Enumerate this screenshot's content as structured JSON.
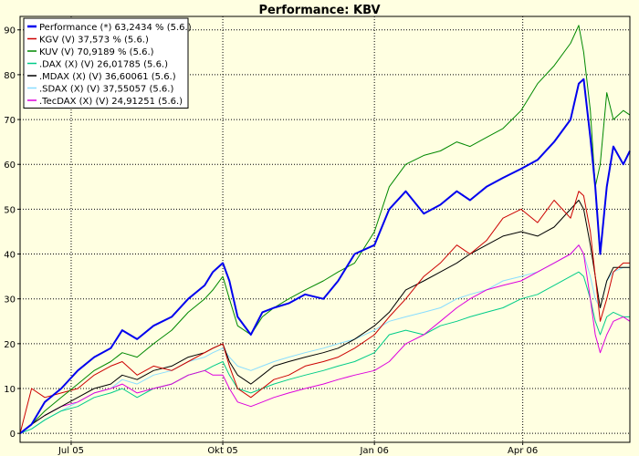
{
  "chart_data": {
    "type": "line",
    "title": "Performance: KBV",
    "xlabel": "",
    "ylabel": "",
    "xlim": [
      "2005-05-31",
      "2006-06-05"
    ],
    "ylim": [
      -2,
      93
    ],
    "y_ticks": [
      0,
      10,
      20,
      30,
      40,
      50,
      60,
      70,
      80,
      90
    ],
    "x_ticks": [
      {
        "label": "Jul 05",
        "date": "2005-07-01"
      },
      {
        "label": "Okt 05",
        "date": "2005-10-01"
      },
      {
        "label": "Jan 06",
        "date": "2006-01-01"
      },
      {
        "label": "Apr 06",
        "date": "2006-04-01"
      }
    ],
    "grid": true,
    "legend_position": "top-left",
    "series": [
      {
        "name": "Performance (*) 63,2434 % (5.6.)",
        "color": "#0000ee",
        "x": [
          "2005-05-31",
          "2005-06-07",
          "2005-06-15",
          "2005-06-25",
          "2005-07-05",
          "2005-07-15",
          "2005-07-25",
          "2005-08-01",
          "2005-08-10",
          "2005-08-20",
          "2005-08-31",
          "2005-09-10",
          "2005-09-20",
          "2005-09-25",
          "2005-10-01",
          "2005-10-05",
          "2005-10-10",
          "2005-10-18",
          "2005-10-25",
          "2005-11-01",
          "2005-11-10",
          "2005-11-20",
          "2005-12-01",
          "2005-12-10",
          "2005-12-20",
          "2006-01-01",
          "2006-01-10",
          "2006-01-20",
          "2006-01-31",
          "2006-02-10",
          "2006-02-20",
          "2006-02-28",
          "2006-03-10",
          "2006-03-20",
          "2006-03-31",
          "2006-04-10",
          "2006-04-20",
          "2006-04-30",
          "2006-05-05",
          "2006-05-08",
          "2006-05-12",
          "2006-05-15",
          "2006-05-18",
          "2006-05-22",
          "2006-05-26",
          "2006-06-01",
          "2006-06-05"
        ],
        "y": [
          0,
          2,
          7,
          10,
          14,
          17,
          19,
          23,
          21,
          24,
          26,
          30,
          33,
          36,
          38,
          34,
          26,
          22,
          27,
          28,
          29,
          31,
          30,
          34,
          40,
          42,
          50,
          54,
          49,
          51,
          54,
          52,
          55,
          57,
          59,
          61,
          65,
          70,
          78,
          79,
          66,
          55,
          40,
          55,
          64,
          60,
          63
        ]
      },
      {
        "name": "KGV (V) 37,573 % (5.6.)",
        "color": "#cc0000",
        "x": [
          "2005-05-31",
          "2005-06-07",
          "2005-06-15",
          "2005-06-25",
          "2005-07-05",
          "2005-07-15",
          "2005-07-25",
          "2005-08-01",
          "2005-08-10",
          "2005-08-20",
          "2005-08-31",
          "2005-09-10",
          "2005-09-20",
          "2005-09-25",
          "2005-10-01",
          "2005-10-05",
          "2005-10-10",
          "2005-10-18",
          "2005-10-25",
          "2005-11-01",
          "2005-11-10",
          "2005-11-20",
          "2005-12-01",
          "2005-12-10",
          "2005-12-20",
          "2006-01-01",
          "2006-01-10",
          "2006-01-20",
          "2006-01-31",
          "2006-02-10",
          "2006-02-20",
          "2006-02-28",
          "2006-03-10",
          "2006-03-20",
          "2006-03-31",
          "2006-04-10",
          "2006-04-20",
          "2006-04-30",
          "2006-05-05",
          "2006-05-08",
          "2006-05-12",
          "2006-05-15",
          "2006-05-18",
          "2006-05-22",
          "2006-05-26",
          "2006-06-01",
          "2006-06-05"
        ],
        "y": [
          0,
          10,
          8,
          9,
          10,
          13,
          15,
          16,
          13,
          15,
          14,
          16,
          18,
          19,
          20,
          15,
          10,
          8,
          10,
          12,
          13,
          15,
          16,
          17,
          19,
          22,
          26,
          30,
          35,
          38,
          42,
          40,
          43,
          48,
          50,
          47,
          52,
          48,
          54,
          53,
          45,
          35,
          25,
          30,
          36,
          38,
          38
        ]
      },
      {
        "name": "KUV (V) 70,9189 % (5.6.)",
        "color": "#008800",
        "x": [
          "2005-05-31",
          "2005-06-07",
          "2005-06-15",
          "2005-06-25",
          "2005-07-05",
          "2005-07-15",
          "2005-07-25",
          "2005-08-01",
          "2005-08-10",
          "2005-08-20",
          "2005-08-31",
          "2005-09-10",
          "2005-09-20",
          "2005-09-25",
          "2005-10-01",
          "2005-10-05",
          "2005-10-10",
          "2005-10-18",
          "2005-10-25",
          "2005-11-01",
          "2005-11-10",
          "2005-11-20",
          "2005-12-01",
          "2005-12-10",
          "2005-12-20",
          "2006-01-01",
          "2006-01-10",
          "2006-01-20",
          "2006-01-31",
          "2006-02-10",
          "2006-02-20",
          "2006-02-28",
          "2006-03-10",
          "2006-03-20",
          "2006-03-31",
          "2006-04-10",
          "2006-04-20",
          "2006-04-30",
          "2006-05-05",
          "2006-05-08",
          "2006-05-12",
          "2006-05-15",
          "2006-05-18",
          "2006-05-22",
          "2006-05-26",
          "2006-06-01",
          "2006-06-05"
        ],
        "y": [
          0,
          2,
          5,
          8,
          11,
          14,
          16,
          18,
          17,
          20,
          23,
          27,
          30,
          32,
          35,
          30,
          24,
          22,
          26,
          28,
          30,
          32,
          34,
          36,
          38,
          45,
          55,
          60,
          62,
          63,
          65,
          64,
          66,
          68,
          72,
          78,
          82,
          87,
          91,
          85,
          72,
          55,
          60,
          76,
          70,
          72,
          71
        ]
      },
      {
        "name": ".DAX (X) (V) 26,01785 (5.6.)",
        "color": "#00cc88",
        "x": [
          "2005-05-31",
          "2005-06-07",
          "2005-06-15",
          "2005-06-25",
          "2005-07-05",
          "2005-07-15",
          "2005-07-25",
          "2005-08-01",
          "2005-08-10",
          "2005-08-20",
          "2005-08-31",
          "2005-09-10",
          "2005-09-20",
          "2005-09-25",
          "2005-10-01",
          "2005-10-05",
          "2005-10-10",
          "2005-10-18",
          "2005-10-25",
          "2005-11-01",
          "2005-11-10",
          "2005-11-20",
          "2005-12-01",
          "2005-12-10",
          "2005-12-20",
          "2006-01-01",
          "2006-01-10",
          "2006-01-20",
          "2006-01-31",
          "2006-02-10",
          "2006-02-20",
          "2006-02-28",
          "2006-03-10",
          "2006-03-20",
          "2006-03-31",
          "2006-04-10",
          "2006-04-20",
          "2006-04-30",
          "2006-05-05",
          "2006-05-08",
          "2006-05-12",
          "2006-05-15",
          "2006-05-18",
          "2006-05-22",
          "2006-05-26",
          "2006-06-01",
          "2006-06-05"
        ],
        "y": [
          0,
          1,
          3,
          5,
          6,
          8,
          9,
          10,
          8,
          10,
          11,
          13,
          14,
          15,
          16,
          13,
          10,
          9,
          10,
          11,
          12,
          13,
          14,
          15,
          16,
          18,
          22,
          23,
          22,
          24,
          25,
          26,
          27,
          28,
          30,
          31,
          33,
          35,
          36,
          35,
          30,
          25,
          22,
          26,
          27,
          26,
          26
        ]
      },
      {
        "name": ".MDAX (X) (V) 36,60061 (5.6.)",
        "color": "#000000",
        "x": [
          "2005-05-31",
          "2005-06-07",
          "2005-06-15",
          "2005-06-25",
          "2005-07-05",
          "2005-07-15",
          "2005-07-25",
          "2005-08-01",
          "2005-08-10",
          "2005-08-20",
          "2005-08-31",
          "2005-09-10",
          "2005-09-20",
          "2005-09-25",
          "2005-10-01",
          "2005-10-05",
          "2005-10-10",
          "2005-10-18",
          "2005-10-25",
          "2005-11-01",
          "2005-11-10",
          "2005-11-20",
          "2005-12-01",
          "2005-12-10",
          "2005-12-20",
          "2006-01-01",
          "2006-01-10",
          "2006-01-20",
          "2006-01-31",
          "2006-02-10",
          "2006-02-20",
          "2006-02-28",
          "2006-03-10",
          "2006-03-20",
          "2006-03-31",
          "2006-04-10",
          "2006-04-20",
          "2006-04-30",
          "2006-05-05",
          "2006-05-08",
          "2006-05-12",
          "2006-05-15",
          "2006-05-18",
          "2006-05-22",
          "2006-05-26",
          "2006-06-01",
          "2006-06-05"
        ],
        "y": [
          0,
          2,
          4,
          6,
          8,
          10,
          11,
          13,
          12,
          14,
          15,
          17,
          18,
          19,
          20,
          16,
          13,
          11,
          13,
          15,
          16,
          17,
          18,
          19,
          21,
          24,
          27,
          32,
          34,
          36,
          38,
          40,
          42,
          44,
          45,
          44,
          46,
          50,
          52,
          50,
          42,
          35,
          28,
          34,
          37,
          37,
          37
        ]
      },
      {
        "name": ".SDAX (X) (V) 37,55057 (5.6.)",
        "color": "#88ddff",
        "x": [
          "2005-05-31",
          "2005-06-07",
          "2005-06-15",
          "2005-06-25",
          "2005-07-05",
          "2005-07-15",
          "2005-07-25",
          "2005-08-01",
          "2005-08-10",
          "2005-08-20",
          "2005-08-31",
          "2005-09-10",
          "2005-09-20",
          "2005-09-25",
          "2005-10-01",
          "2005-10-05",
          "2005-10-10",
          "2005-10-18",
          "2005-10-25",
          "2005-11-01",
          "2005-11-10",
          "2005-11-20",
          "2005-12-01",
          "2005-12-10",
          "2005-12-20",
          "2006-01-01",
          "2006-01-10",
          "2006-01-20",
          "2006-01-31",
          "2006-02-10",
          "2006-02-20",
          "2006-02-28",
          "2006-03-10",
          "2006-03-20",
          "2006-03-31",
          "2006-04-10",
          "2006-04-20",
          "2006-04-30",
          "2006-05-05",
          "2006-05-08",
          "2006-05-12",
          "2006-05-15",
          "2006-05-18",
          "2006-05-22",
          "2006-05-26",
          "2006-06-01",
          "2006-06-05"
        ],
        "y": [
          0,
          1,
          3,
          5,
          7,
          9,
          10,
          12,
          11,
          13,
          14,
          16,
          17,
          18,
          19,
          17,
          15,
          14,
          15,
          16,
          17,
          18,
          19,
          20,
          21,
          23,
          25,
          26,
          27,
          28,
          30,
          31,
          32,
          34,
          35,
          36,
          38,
          40,
          42,
          40,
          35,
          30,
          28,
          34,
          36,
          37,
          37
        ]
      },
      {
        "name": ".TecDAX (X) (V) 24,91251 (5.6.)",
        "color": "#dd00dd",
        "x": [
          "2005-05-31",
          "2005-06-07",
          "2005-06-15",
          "2005-06-25",
          "2005-07-05",
          "2005-07-15",
          "2005-07-25",
          "2005-08-01",
          "2005-08-10",
          "2005-08-20",
          "2005-08-31",
          "2005-09-10",
          "2005-09-20",
          "2005-09-25",
          "2005-10-01",
          "2005-10-05",
          "2005-10-10",
          "2005-10-18",
          "2005-10-25",
          "2005-11-01",
          "2005-11-10",
          "2005-11-20",
          "2005-12-01",
          "2005-12-10",
          "2005-12-20",
          "2006-01-01",
          "2006-01-10",
          "2006-01-20",
          "2006-01-31",
          "2006-02-10",
          "2006-02-20",
          "2006-02-28",
          "2006-03-10",
          "2006-03-20",
          "2006-03-31",
          "2006-04-10",
          "2006-04-20",
          "2006-04-30",
          "2006-05-05",
          "2006-05-08",
          "2006-05-12",
          "2006-05-15",
          "2006-05-18",
          "2006-05-22",
          "2006-05-26",
          "2006-06-01",
          "2006-06-05"
        ],
        "y": [
          0,
          2,
          4,
          6,
          7,
          9,
          10,
          11,
          9,
          10,
          11,
          13,
          14,
          13,
          13,
          10,
          7,
          6,
          7,
          8,
          9,
          10,
          11,
          12,
          13,
          14,
          16,
          20,
          22,
          25,
          28,
          30,
          32,
          33,
          34,
          36,
          38,
          40,
          42,
          40,
          30,
          22,
          18,
          22,
          25,
          26,
          25
        ]
      }
    ]
  }
}
